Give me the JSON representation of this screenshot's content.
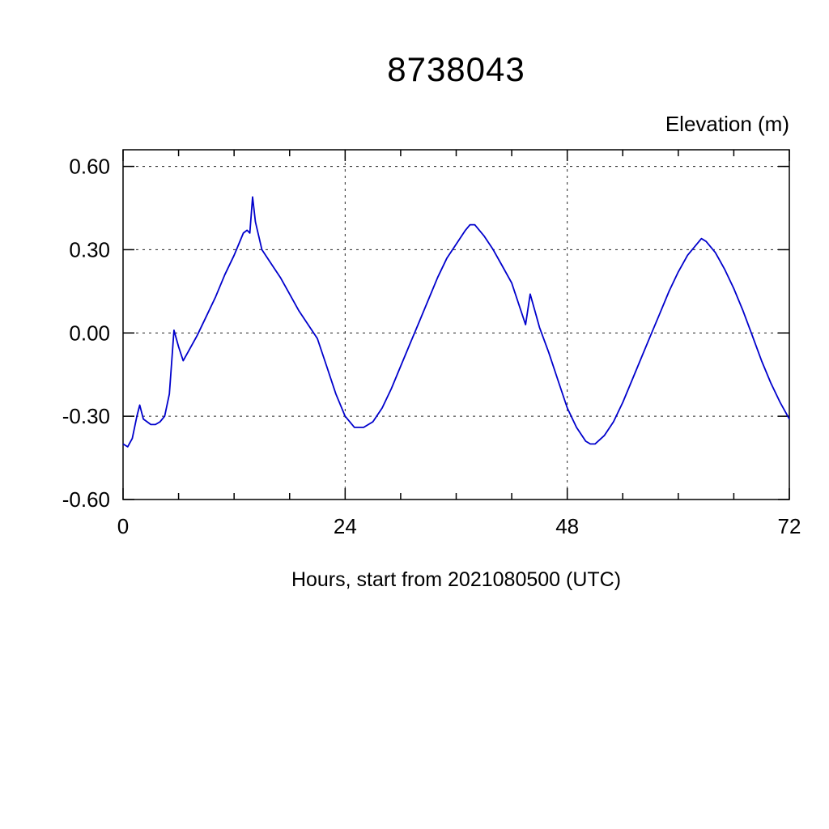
{
  "page": {
    "background": "#ffffff"
  },
  "chart_data": {
    "type": "line",
    "title": "8738043",
    "ylabel": "Elevation (m)",
    "xlabel": "Hours, start from 2021080500 (UTC)",
    "xlim": [
      0,
      72
    ],
    "ylim": [
      -0.6,
      0.66
    ],
    "grid_on": true,
    "legend": "none",
    "line_color": "#0000cc",
    "grid_x": [
      24,
      48
    ],
    "grid_y": [
      -0.3,
      0.0,
      0.3,
      0.6
    ],
    "xticks": [
      {
        "v": 0,
        "label": "0"
      },
      {
        "v": 24,
        "label": "24"
      },
      {
        "v": 48,
        "label": "48"
      },
      {
        "v": 72,
        "label": "72"
      }
    ],
    "xticks_minor": [
      6,
      12,
      18,
      30,
      36,
      42,
      54,
      60,
      66
    ],
    "yticks": [
      {
        "v": -0.6,
        "label": "-0.60"
      },
      {
        "v": -0.3,
        "label": "-0.30"
      },
      {
        "v": 0.0,
        "label": "0.00"
      },
      {
        "v": 0.3,
        "label": "0.30"
      },
      {
        "v": 0.6,
        "label": "0.60"
      }
    ],
    "series": [
      {
        "name": "elevation",
        "points": [
          [
            0,
            -0.4
          ],
          [
            0.5,
            -0.41
          ],
          [
            1,
            -0.38
          ],
          [
            1.5,
            -0.3
          ],
          [
            1.8,
            -0.26
          ],
          [
            2.2,
            -0.31
          ],
          [
            3,
            -0.33
          ],
          [
            3.5,
            -0.33
          ],
          [
            4,
            -0.32
          ],
          [
            4.5,
            -0.3
          ],
          [
            5,
            -0.22
          ],
          [
            5.5,
            0.01
          ],
          [
            6,
            -0.05
          ],
          [
            6.5,
            -0.1
          ],
          [
            7,
            -0.07
          ],
          [
            8,
            -0.01
          ],
          [
            9,
            0.06
          ],
          [
            10,
            0.13
          ],
          [
            11,
            0.21
          ],
          [
            12,
            0.28
          ],
          [
            12.5,
            0.32
          ],
          [
            13,
            0.36
          ],
          [
            13.4,
            0.37
          ],
          [
            13.7,
            0.36
          ],
          [
            14,
            0.49
          ],
          [
            14.3,
            0.4
          ],
          [
            15,
            0.3
          ],
          [
            16,
            0.25
          ],
          [
            17,
            0.2
          ],
          [
            18,
            0.14
          ],
          [
            19,
            0.08
          ],
          [
            20,
            0.03
          ],
          [
            21,
            -0.02
          ],
          [
            22,
            -0.12
          ],
          [
            23,
            -0.22
          ],
          [
            24,
            -0.3
          ],
          [
            25,
            -0.34
          ],
          [
            26,
            -0.34
          ],
          [
            27,
            -0.32
          ],
          [
            28,
            -0.27
          ],
          [
            29,
            -0.2
          ],
          [
            30,
            -0.12
          ],
          [
            31,
            -0.04
          ],
          [
            32,
            0.04
          ],
          [
            33,
            0.12
          ],
          [
            34,
            0.2
          ],
          [
            35,
            0.27
          ],
          [
            36,
            0.32
          ],
          [
            37,
            0.37
          ],
          [
            37.5,
            0.39
          ],
          [
            38,
            0.39
          ],
          [
            39,
            0.35
          ],
          [
            40,
            0.3
          ],
          [
            41,
            0.24
          ],
          [
            42,
            0.18
          ],
          [
            43,
            0.08
          ],
          [
            43.5,
            0.03
          ],
          [
            44,
            0.14
          ],
          [
            44.5,
            0.08
          ],
          [
            45,
            0.02
          ],
          [
            46,
            -0.07
          ],
          [
            47,
            -0.17
          ],
          [
            48,
            -0.27
          ],
          [
            49,
            -0.34
          ],
          [
            50,
            -0.39
          ],
          [
            50.5,
            -0.4
          ],
          [
            51,
            -0.4
          ],
          [
            52,
            -0.37
          ],
          [
            53,
            -0.32
          ],
          [
            54,
            -0.25
          ],
          [
            55,
            -0.17
          ],
          [
            56,
            -0.09
          ],
          [
            57,
            -0.01
          ],
          [
            58,
            0.07
          ],
          [
            59,
            0.15
          ],
          [
            60,
            0.22
          ],
          [
            61,
            0.28
          ],
          [
            62,
            0.32
          ],
          [
            62.5,
            0.34
          ],
          [
            63,
            0.33
          ],
          [
            64,
            0.29
          ],
          [
            65,
            0.23
          ],
          [
            66,
            0.16
          ],
          [
            67,
            0.08
          ],
          [
            68,
            -0.01
          ],
          [
            69,
            -0.1
          ],
          [
            70,
            -0.18
          ],
          [
            71,
            -0.25
          ],
          [
            72,
            -0.31
          ]
        ]
      }
    ]
  }
}
